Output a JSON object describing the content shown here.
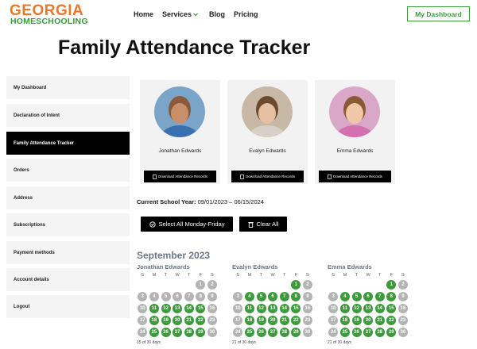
{
  "header": {
    "logo_top": "GEORGIA",
    "logo_bottom": "HOMESCHOOLING",
    "nav": [
      "Home",
      "Services",
      "Blog",
      "Pricing"
    ],
    "button": "My Dashboard"
  },
  "title": "Family Attendance Tracker",
  "sidebar": {
    "items": [
      "My Dashboard",
      "Declaration of Intent",
      "Family Attendance Tracker",
      "Orders",
      "Address",
      "Subscriptions",
      "Payment methods",
      "Account details",
      "Logout"
    ],
    "active": 2
  },
  "children": [
    {
      "name": "Jonathan Edwards",
      "button": "Download Attendance Records"
    },
    {
      "name": "Evalyn Edwards",
      "button": "Download Attendance Records"
    },
    {
      "name": "Emma Edwards",
      "button": "Download Attendance Records"
    }
  ],
  "school_year": {
    "label": "Current School Year:",
    "value": "09/01/2023 – 06/15/2024"
  },
  "actions": [
    "Select All Monday-Friday",
    "Clear All"
  ],
  "month": "September 2023",
  "weekdays": [
    "S",
    "M",
    "T",
    "W",
    "T",
    "F",
    "S"
  ],
  "calendars": [
    {
      "name": "Jonathan Edwards",
      "weeks": [
        [
          null,
          null,
          null,
          null,
          null,
          1,
          2
        ],
        [
          3,
          4,
          5,
          6,
          7,
          8,
          9
        ],
        [
          10,
          11,
          12,
          13,
          14,
          15,
          16
        ],
        [
          17,
          18,
          19,
          20,
          21,
          22,
          23
        ],
        [
          24,
          25,
          26,
          27,
          28,
          29,
          30
        ]
      ],
      "checked": [
        11,
        12,
        13,
        14,
        15,
        18,
        19,
        20,
        21,
        22,
        25,
        26,
        27,
        28,
        29
      ],
      "summary": "15 of 30 days"
    },
    {
      "name": "Evalyn Edwards",
      "weeks": [
        [
          null,
          null,
          null,
          null,
          null,
          1,
          2
        ],
        [
          3,
          4,
          5,
          6,
          7,
          8,
          9
        ],
        [
          10,
          11,
          12,
          13,
          14,
          15,
          16
        ],
        [
          17,
          18,
          19,
          20,
          21,
          22,
          23
        ],
        [
          24,
          25,
          26,
          27,
          28,
          29,
          30
        ]
      ],
      "checked": [
        1,
        4,
        5,
        6,
        7,
        8,
        11,
        12,
        13,
        14,
        15,
        18,
        19,
        20,
        21,
        22,
        25,
        26,
        27,
        28,
        29
      ],
      "summary": "21 of 30 days"
    },
    {
      "name": "Emma Edwards",
      "weeks": [
        [
          null,
          null,
          null,
          null,
          null,
          1,
          2
        ],
        [
          3,
          4,
          5,
          6,
          7,
          8,
          9
        ],
        [
          10,
          11,
          12,
          13,
          14,
          15,
          16
        ],
        [
          17,
          18,
          19,
          20,
          21,
          22,
          23
        ],
        [
          24,
          25,
          26,
          27,
          28,
          29,
          30
        ]
      ],
      "checked": [
        1,
        4,
        5,
        6,
        7,
        8,
        11,
        12,
        13,
        14,
        15,
        18,
        19,
        20,
        21,
        22,
        25,
        26,
        27,
        28,
        29
      ],
      "summary": "21 of 30 days"
    }
  ]
}
